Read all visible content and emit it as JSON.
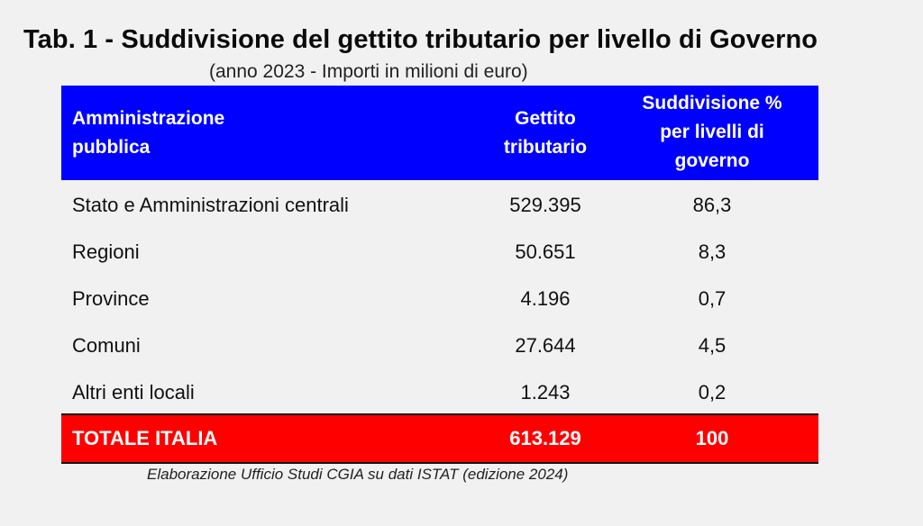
{
  "title": "Tab. 1 - Suddivisione del gettito tributario per livello di Governo",
  "subtitle": "(anno 2023 - Importi in milioni di euro)",
  "table": {
    "headers": [
      {
        "line1": "Amministrazione",
        "line2": "pubblica"
      },
      {
        "line1": "Gettito",
        "line2": "tributario"
      },
      {
        "line1": "Suddivisione %",
        "line2": "per livelli di",
        "line3": "governo"
      }
    ],
    "rows": [
      {
        "name": "Stato e Amministrazioni centrali",
        "gettito": "529.395",
        "percent": "86,3"
      },
      {
        "name": "Regioni",
        "gettito": "50.651",
        "percent": "8,3"
      },
      {
        "name": "Province",
        "gettito": "4.196",
        "percent": "0,7"
      },
      {
        "name": "Comuni",
        "gettito": "27.644",
        "percent": "4,5"
      },
      {
        "name": "Altri enti locali",
        "gettito": "1.243",
        "percent": "0,2"
      }
    ],
    "total": {
      "name": "TOTALE ITALIA",
      "gettito": "613.129",
      "percent": "100"
    }
  },
  "source": "Elaborazione Ufficio Studi CGIA su dati ISTAT (edizione 2024)",
  "colors": {
    "header_bg": "#0000ff",
    "total_bg": "#ff0000",
    "page_bg": "#f1f1f1"
  }
}
